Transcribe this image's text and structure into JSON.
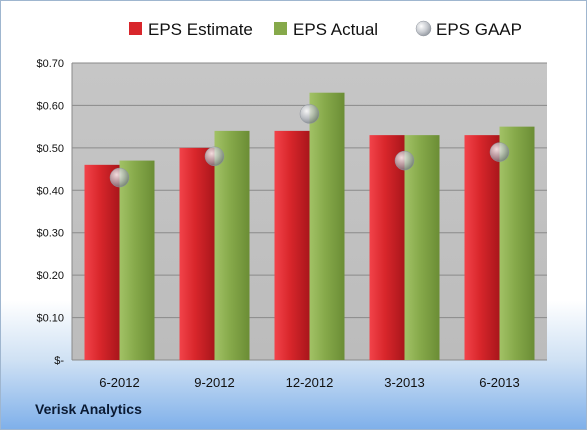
{
  "chart_data": {
    "type": "bar",
    "categories": [
      "6-2012",
      "9-2012",
      "12-2012",
      "3-2013",
      "6-2013"
    ],
    "series": [
      {
        "name": "EPS Estimate",
        "type": "bar",
        "color": "#d8262b",
        "values": [
          0.46,
          0.5,
          0.54,
          0.53,
          0.53
        ]
      },
      {
        "name": "EPS Actual",
        "type": "bar",
        "color": "#86a94a",
        "values": [
          0.47,
          0.54,
          0.63,
          0.53,
          0.55
        ]
      },
      {
        "name": "EPS GAAP",
        "type": "scatter",
        "color": "#b9bdc4",
        "values": [
          0.43,
          0.48,
          0.58,
          0.47,
          0.49
        ]
      }
    ],
    "ylim": [
      0,
      0.7
    ],
    "yticks": [
      0,
      0.1,
      0.2,
      0.3,
      0.4,
      0.5,
      0.6,
      0.7
    ],
    "ytick_labels": [
      "$-",
      "$0.10",
      "$0.20",
      "$0.30",
      "$0.40",
      "$0.50",
      "$0.60",
      "$0.70"
    ],
    "grid": true,
    "legend": "top",
    "plot_background": "#c0c0c0"
  },
  "footer": {
    "company": "Verisk Analytics"
  }
}
